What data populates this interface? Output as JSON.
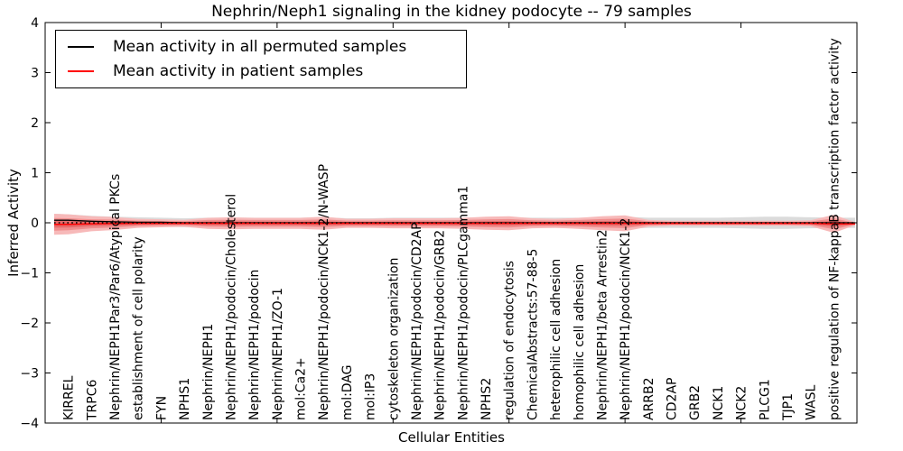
{
  "figure": {
    "title": "Nephrin/Neph1 signaling in the kidney podocyte -- 79 samples",
    "sample_count_note": "79 samples"
  },
  "legend": {
    "position": "upper left",
    "items": [
      {
        "label": "Mean activity in all permuted samples",
        "color": "#000000"
      },
      {
        "label": "Mean activity in patient samples",
        "color": "#ff0000"
      }
    ]
  },
  "chart_data": {
    "type": "line",
    "title": "Nephrin/Neph1 signaling in the kidney podocyte -- 79 samples",
    "xlabel": "Cellular Entities",
    "ylabel": "Inferred Activity",
    "ylim": [
      -4,
      4
    ],
    "yticks": [
      -4,
      -3,
      -2,
      -1,
      0,
      1,
      2,
      3,
      4
    ],
    "ytick_labels": [
      "−4",
      "−3",
      "−2",
      "−1",
      "0",
      "1",
      "2",
      "3",
      "4"
    ],
    "grid": false,
    "legend_position": "upper left",
    "categories": [
      "KIRREL",
      "TRPC6",
      "Nephrin/NEPH1Par3/Par6/Atypical PKCs",
      "establishment of cell polarity",
      "FYN",
      "NPHS1",
      "Nephrin/NEPH1",
      "Nephrin/NEPH1/podocin/Cholesterol",
      "Nephrin/NEPH1/podocin",
      "Nephrin/NEPH1/ZO-1",
      "mol:Ca2+",
      "Nephrin/NEPH1/podocin/NCK1-2/N-WASP",
      "mol:DAG",
      "mol:IP3",
      "cytoskeleton organization",
      "Nephrin/NEPH1/podocin/CD2AP",
      "Nephrin/NEPH1/podocin/GRB2",
      "Nephrin/NEPH1/podocin/PLCgamma1",
      "NPHS2",
      "regulation of endocytosis",
      "ChemicalAbstracts:57-88-5",
      "heterophilic cell adhesion",
      "homophilic cell adhesion",
      "Nephrin/NEPH1/beta Arrestin2",
      "Nephrin/NEPH1/podocin/NCK1-2",
      "ARRB2",
      "CD2AP",
      "GRB2",
      "NCK1",
      "NCK2",
      "PLCG1",
      "TJP1",
      "WASL",
      "positive regulation of NF-kappaB transcription factor activity"
    ],
    "series": [
      {
        "name": "Mean activity in all permuted samples",
        "color": "#000000",
        "style": "solid",
        "values": [
          0.05,
          0.03,
          0.02,
          0.01,
          0.01,
          0,
          0,
          0,
          0,
          0,
          0,
          0,
          0,
          0,
          0,
          0,
          0,
          0,
          0,
          0,
          0,
          0,
          0,
          0,
          0,
          0,
          0,
          0,
          0,
          0,
          0,
          0,
          0,
          0
        ],
        "band": {
          "label": "std of permuted samples",
          "color": "#dbdbdb",
          "halfwidths": [
            0.12,
            0.11,
            0.1,
            0.1,
            0.09,
            0.09,
            0.1,
            0.1,
            0.1,
            0.1,
            0.1,
            0.11,
            0.09,
            0.09,
            0.1,
            0.1,
            0.1,
            0.1,
            0.11,
            0.11,
            0.1,
            0.1,
            0.1,
            0.11,
            0.12,
            0.1,
            0.1,
            0.1,
            0.1,
            0.11,
            0.12,
            0.12,
            0.11,
            0.1
          ]
        }
      },
      {
        "name": "Mean activity in patient samples",
        "color": "#ff0000",
        "style": "solid",
        "values": [
          -0.03,
          -0.02,
          -0.015,
          -0.01,
          -0.01,
          -0.01,
          -0.01,
          -0.01,
          -0.01,
          -0.01,
          -0.01,
          -0.01,
          -0.01,
          -0.01,
          -0.01,
          -0.01,
          -0.01,
          -0.01,
          -0.01,
          -0.01,
          -0.01,
          -0.01,
          -0.01,
          -0.01,
          -0.01,
          -0.01,
          -0.01,
          -0.01,
          -0.01,
          -0.01,
          -0.01,
          -0.01,
          -0.01,
          -0.02
        ],
        "band": {
          "label": "std of patient samples",
          "colors": [
            "#f7b9b9",
            "#f08d8d",
            "#e66a6a"
          ],
          "scales": [
            1,
            0.6,
            0.32
          ],
          "halfwidths": [
            0.2,
            0.15,
            0.13,
            0.09,
            0.08,
            0.07,
            0.11,
            0.12,
            0.11,
            0.11,
            0.11,
            0.13,
            0.09,
            0.09,
            0.1,
            0.1,
            0.1,
            0.11,
            0.13,
            0.14,
            0.1,
            0.09,
            0.11,
            0.14,
            0.16,
            0.07,
            0.05,
            0.05,
            0.05,
            0.05,
            0.05,
            0.05,
            0.06,
            0.18
          ]
        }
      }
    ],
    "reference_line": {
      "value": 0,
      "color": "#000000",
      "style": "dotted"
    }
  }
}
